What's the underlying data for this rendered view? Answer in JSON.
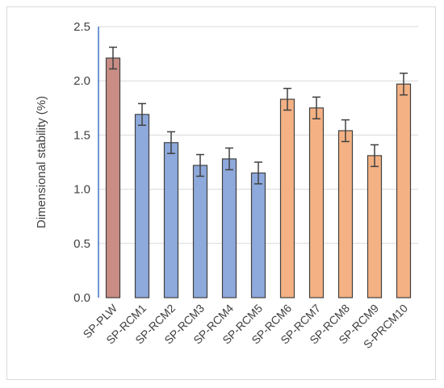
{
  "chart_data": {
    "type": "bar",
    "title": "",
    "xlabel": "",
    "ylabel": "Dimensional stability (%)",
    "ylim": [
      0,
      2.5
    ],
    "yticks": [
      "0.0",
      "0.5",
      "1.0",
      "1.5",
      "2.0",
      "2.5"
    ],
    "grid": true,
    "legend": "none",
    "categories": [
      "SP-PLW",
      "SP-RCM1",
      "SP-RCM2",
      "SP-RCM3",
      "SP-RCM4",
      "SP-RCM5",
      "SP-RCM6",
      "SP-RCM7",
      "SP-RCM8",
      "SP-RCM9",
      "S-PRCM10"
    ],
    "values": [
      2.21,
      1.69,
      1.43,
      1.22,
      1.28,
      1.15,
      1.83,
      1.75,
      1.54,
      1.31,
      1.97
    ],
    "errors": [
      0.1,
      0.1,
      0.1,
      0.1,
      0.1,
      0.1,
      0.1,
      0.1,
      0.1,
      0.1,
      0.1
    ],
    "bar_colors": [
      "#c98d86",
      "#8ea9db",
      "#8ea9db",
      "#8ea9db",
      "#8ea9db",
      "#8ea9db",
      "#f4b183",
      "#f4b183",
      "#f4b183",
      "#f4b183",
      "#f4b183"
    ],
    "gridline_color": "#d9d9d9",
    "axis_color": "#4472c4"
  }
}
